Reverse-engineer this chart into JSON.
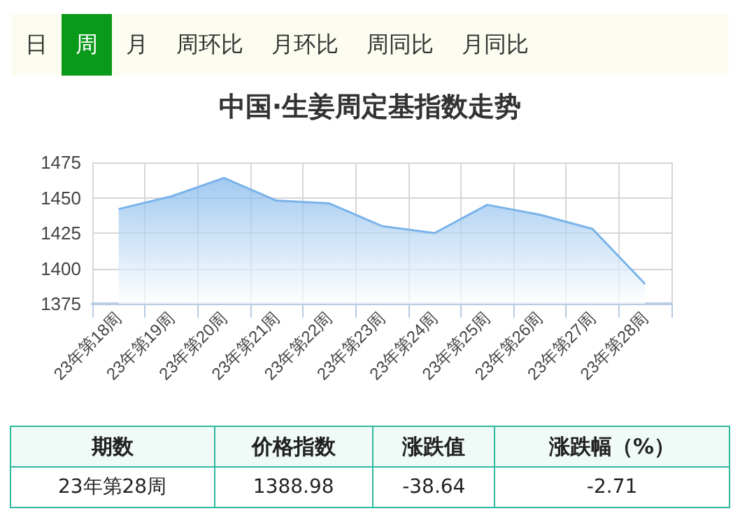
{
  "chart_data": {
    "type": "area",
    "title": "中国·生姜周定基指数走势",
    "categories": [
      "23年第18周",
      "23年第19周",
      "23年第20周",
      "23年第21周",
      "23年第22周",
      "23年第23周",
      "23年第24周",
      "23年第25周",
      "23年第26周",
      "23年第27周",
      "23年第28周"
    ],
    "series": [
      {
        "color": "#7ab3ea",
        "values": [
          1442,
          1451,
          1464,
          1448,
          1446,
          1430,
          1425,
          1445,
          1438,
          1428,
          1389
        ]
      }
    ],
    "ylim": [
      1375,
      1475
    ],
    "yticks": [
      1375,
      1400,
      1425,
      1450,
      1475
    ],
    "grid": true,
    "marker": "none",
    "annotations": [
      "日",
      "周",
      "月",
      "周环比",
      "月环比",
      "周同比",
      "月同比",
      "期数",
      "价格指数",
      "涨跌值",
      "涨跌幅（%）",
      "23年第28周",
      "1388.98",
      "-38.64",
      "-2.71"
    ]
  }
}
